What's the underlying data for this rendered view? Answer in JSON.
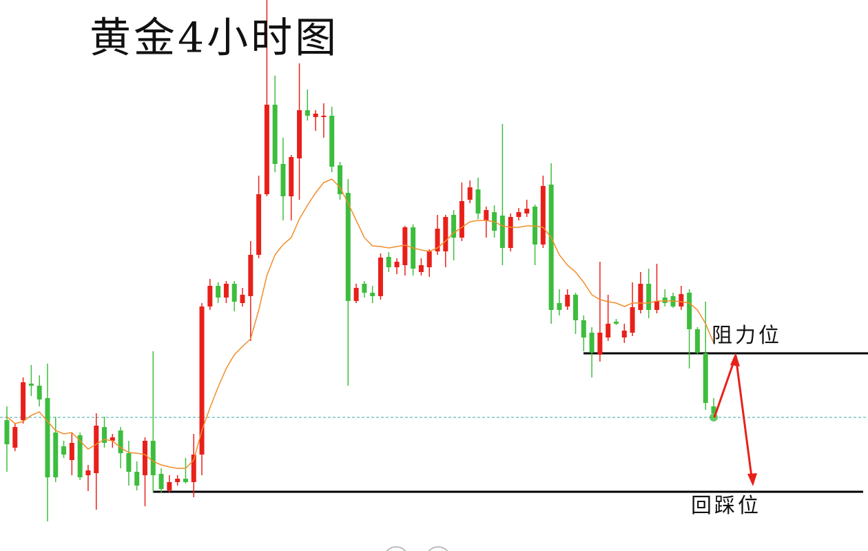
{
  "chart_data": {
    "type": "candlestick",
    "title": "黄金4小时图",
    "ylim": [
      0,
      800
    ],
    "up_color": "#e8201a",
    "down_color": "#3dbd3d",
    "ma_color": "#f28c28",
    "price_line_color": "#3aa99f",
    "open": [
      190,
      150,
      190,
      243,
      240,
      222,
      172,
      152,
      132,
      168,
      110,
      113,
      180,
      160,
      175,
      142,
      115,
      110,
      160,
      112,
      88,
      100,
      105,
      100,
      140,
      355,
      385,
      368,
      388,
      360,
      370,
      430,
      518,
      648,
      562,
      515,
      570,
      640,
      630,
      630,
      632,
      560,
      520,
      363,
      388,
      375,
      370,
      427,
      412,
      415,
      470,
      405,
      412,
      435,
      435,
      488,
      455,
      510,
      525,
      480,
      492,
      487,
      440,
      485,
      490,
      500,
      445,
      532,
      360,
      355,
      372,
      335,
      317,
      285,
      310,
      333,
      310,
      317,
      350,
      388,
      350,
      368,
      370,
      355,
      375,
      322,
      287,
      210
    ],
    "high": [
      210,
      185,
      252,
      270,
      255,
      272,
      195,
      160,
      172,
      172,
      125,
      200,
      195,
      170,
      180,
      160,
      130,
      165,
      290,
      120,
      110,
      110,
      135,
      170,
      360,
      395,
      390,
      392,
      392,
      382,
      450,
      545,
      800,
      690,
      600,
      575,
      708,
      670,
      640,
      650,
      645,
      565,
      540,
      388,
      392,
      385,
      432,
      434,
      425,
      472,
      474,
      425,
      438,
      488,
      488,
      495,
      535,
      538,
      542,
      500,
      502,
      620,
      490,
      498,
      510,
      503,
      545,
      563,
      380,
      380,
      375,
      342,
      325,
      420,
      372,
      337,
      330,
      390,
      405,
      410,
      417,
      380,
      375,
      385,
      380,
      325,
      362,
      222
    ],
    "low": [
      115,
      145,
      185,
      225,
      210,
      43,
      100,
      135,
      110,
      103,
      87,
      60,
      150,
      150,
      120,
      95,
      88,
      65,
      85,
      85,
      85,
      95,
      98,
      78,
      110,
      350,
      360,
      360,
      348,
      355,
      305,
      425,
      515,
      550,
      480,
      480,
      510,
      625,
      610,
      600,
      550,
      510,
      240,
      360,
      368,
      360,
      365,
      405,
      402,
      400,
      400,
      400,
      398,
      430,
      412,
      422,
      450,
      505,
      482,
      455,
      455,
      415,
      435,
      480,
      485,
      415,
      440,
      330,
      342,
      350,
      315,
      290,
      252,
      275,
      305,
      328,
      302,
      312,
      345,
      338,
      345,
      355,
      353,
      350,
      265,
      285,
      205,
      194
    ],
    "close": [
      155,
      180,
      245,
      240,
      220,
      107,
      107,
      140,
      157,
      107,
      117,
      182,
      157,
      165,
      142,
      115,
      95,
      160,
      110,
      90,
      100,
      105,
      100,
      140,
      355,
      385,
      368,
      388,
      362,
      372,
      430,
      518,
      648,
      562,
      515,
      572,
      640,
      632,
      635,
      632,
      558,
      518,
      363,
      382,
      375,
      370,
      426,
      412,
      420,
      470,
      410,
      415,
      435,
      468,
      485,
      455,
      508,
      528,
      490,
      495,
      465,
      440,
      485,
      492,
      497,
      445,
      530,
      350,
      350,
      372,
      335,
      310,
      288,
      317,
      330,
      330,
      320,
      354,
      388,
      350,
      363,
      360,
      355,
      373,
      322,
      288,
      215,
      200
    ],
    "ma": [
      195,
      185,
      188,
      197,
      202,
      188,
      175,
      170,
      172,
      160,
      148,
      155,
      162,
      160,
      150,
      143,
      142,
      140,
      130,
      125,
      122,
      120,
      120,
      132,
      175,
      208,
      238,
      265,
      285,
      297,
      308,
      350,
      400,
      430,
      445,
      455,
      482,
      502,
      520,
      535,
      540,
      528,
      505,
      480,
      455,
      443,
      442,
      440,
      442,
      444,
      440,
      437,
      435,
      440,
      450,
      462,
      470,
      478,
      480,
      480,
      478,
      472,
      470,
      470,
      472,
      472,
      470,
      455,
      430,
      415,
      405,
      390,
      372,
      365,
      362,
      360,
      355,
      360,
      360,
      360,
      363,
      363,
      363,
      362,
      360,
      350,
      330,
      302
    ],
    "price_line": 194,
    "annotations": [
      {
        "text": "阻力位",
        "value": 287
      },
      {
        "text": "回踩位",
        "value": 86
      }
    ]
  }
}
